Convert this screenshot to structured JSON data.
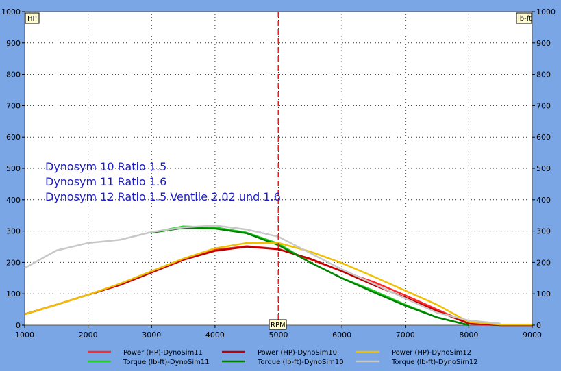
{
  "chart_data": {
    "type": "line",
    "x": [
      1000,
      1500,
      2000,
      2500,
      3000,
      3500,
      4000,
      4500,
      5000,
      5500,
      6000,
      6500,
      7000,
      7500,
      8000,
      8500,
      9000
    ],
    "xlim": [
      1000,
      9000
    ],
    "ylim": [
      0,
      1000
    ],
    "x_ticks": [
      1000,
      2000,
      3000,
      4000,
      5000,
      6000,
      7000,
      8000,
      9000
    ],
    "y_ticks": [
      0,
      100,
      200,
      300,
      400,
      500,
      600,
      700,
      800,
      900,
      1000
    ],
    "left_unit": "HP",
    "right_unit": "lb-ft",
    "x_unit": "RPM",
    "marker_x": 5000,
    "marker_color": "#e02020",
    "plot_background": "#ffffff",
    "grid": "dotted",
    "annotations": [
      "Dynosym 10  Ratio 1.5",
      "Dynosym 11  Ratio 1.6",
      "Dynosym 12  Ratio 1.5 Ventile 2.02 und 1.6"
    ],
    "series": [
      {
        "name": "Power (HP)-DynoSim11",
        "color": "#ff2a2a",
        "values": [
          35,
          65,
          97,
          128,
          168,
          208,
          240,
          252,
          243,
          210,
          172,
          138,
          95,
          50,
          5,
          0,
          0
        ]
      },
      {
        "name": "Torque (lb-ft)-DynoSim11",
        "color": "#20d020",
        "values": [
          null,
          null,
          null,
          null,
          295,
          315,
          312,
          295,
          260,
          200,
          150,
          110,
          65,
          25,
          0,
          null,
          null
        ]
      },
      {
        "name": "Power (HP)-DynoSim10",
        "color": "#c00000",
        "values": [
          35,
          65,
          97,
          128,
          168,
          208,
          237,
          250,
          242,
          212,
          172,
          128,
          88,
          45,
          5,
          0,
          0
        ]
      },
      {
        "name": "Torque (lb-ft)-DynoSim10",
        "color": "#008000",
        "values": [
          null,
          null,
          null,
          null,
          295,
          310,
          308,
          293,
          255,
          200,
          150,
          105,
          62,
          25,
          0,
          null,
          null
        ]
      },
      {
        "name": "Power (HP)-DynoSim12",
        "color": "#f0c000",
        "values": [
          35,
          65,
          97,
          132,
          172,
          212,
          245,
          262,
          262,
          235,
          198,
          155,
          110,
          65,
          10,
          2,
          2
        ]
      },
      {
        "name": "Torque (lb-ft)-DynoSim12",
        "color": "#c8c8c8",
        "values": [
          182,
          238,
          262,
          272,
          297,
          312,
          318,
          305,
          282,
          230,
          178,
          132,
          85,
          40,
          15,
          5,
          null
        ]
      }
    ],
    "legend_position": "bottom"
  }
}
